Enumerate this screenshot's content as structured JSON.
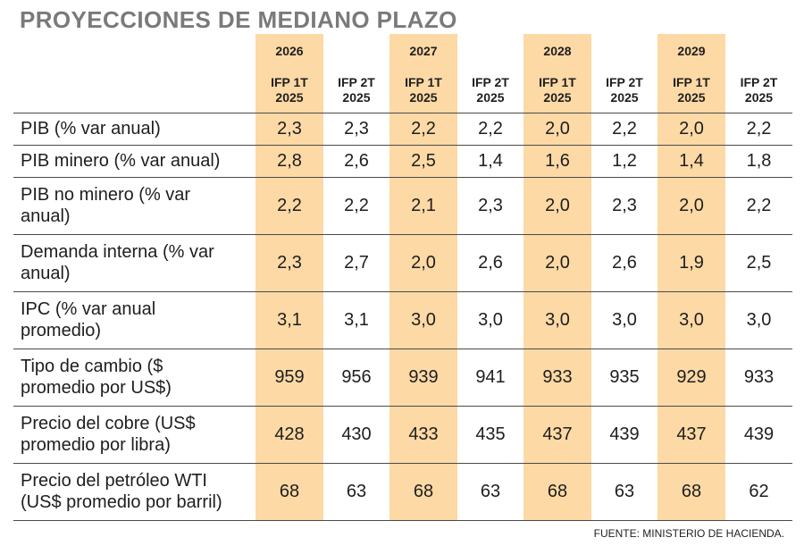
{
  "title": "PROYECCIONES DE MEDIANO PLAZO",
  "highlight_color": "#fdd9a5",
  "years": [
    "2026",
    "2027",
    "2028",
    "2029"
  ],
  "sub_a": [
    "IFP 1T",
    "2025"
  ],
  "sub_b": [
    "IFP 2T",
    "2025"
  ],
  "rows": [
    {
      "label": [
        "PIB (% var anual)"
      ],
      "values": [
        "2,3",
        "2,3",
        "2,2",
        "2,2",
        "2,0",
        "2,2",
        "2,0",
        "2,2"
      ]
    },
    {
      "label": [
        "PIB minero (% var anual)"
      ],
      "values": [
        "2,8",
        "2,6",
        "2,5",
        "1,4",
        "1,6",
        "1,2",
        "1,4",
        "1,8"
      ]
    },
    {
      "label": [
        "PIB no minero (% var",
        "anual)"
      ],
      "values": [
        "2,2",
        "2,2",
        "2,1",
        "2,3",
        "2,0",
        "2,3",
        "2,0",
        "2,2"
      ]
    },
    {
      "label": [
        "Demanda interna (% var",
        "anual)"
      ],
      "values": [
        "2,3",
        "2,7",
        "2,0",
        "2,6",
        "2,0",
        "2,6",
        "1,9",
        "2,5"
      ]
    },
    {
      "label": [
        "IPC (% var anual",
        "promedio)"
      ],
      "values": [
        "3,1",
        "3,1",
        "3,0",
        "3,0",
        "3,0",
        "3,0",
        "3,0",
        "3,0"
      ]
    },
    {
      "label": [
        "Tipo de cambio ($",
        "promedio por US$)"
      ],
      "values": [
        "959",
        "956",
        "939",
        "941",
        "933",
        "935",
        "929",
        "933"
      ]
    },
    {
      "label": [
        "Precio del cobre (US$",
        "promedio por libra)"
      ],
      "values": [
        "428",
        "430",
        "433",
        "435",
        "437",
        "439",
        "437",
        "439"
      ]
    },
    {
      "label": [
        "Precio del petróleo WTI",
        "(US$ promedio por barril)"
      ],
      "values": [
        "68",
        "63",
        "68",
        "63",
        "68",
        "63",
        "68",
        "62"
      ]
    }
  ],
  "source": "FUENTE: MINISTERIO DE HACIENDA."
}
